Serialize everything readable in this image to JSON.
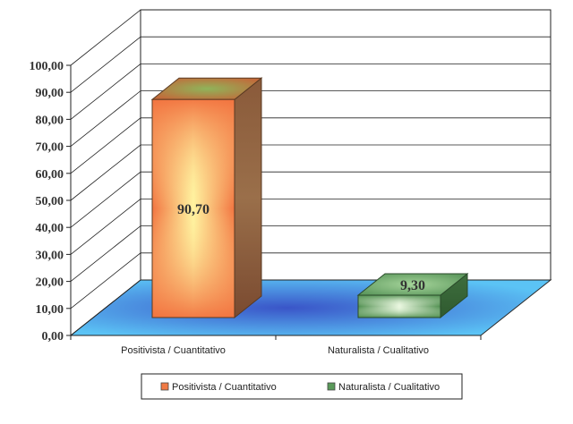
{
  "chart_data": {
    "type": "bar",
    "categories": [
      "Positivista / Cuantitativo",
      "Naturalista / Cualitativo"
    ],
    "values": [
      90.7,
      9.3
    ],
    "value_labels": [
      "90,70",
      "9,30"
    ],
    "y_ticks": [
      "0,00",
      "10,00",
      "20,00",
      "30,00",
      "40,00",
      "50,00",
      "60,00",
      "70,00",
      "80,00",
      "90,00",
      "100,00"
    ],
    "ylim": [
      0,
      100
    ],
    "legend": [
      "Positivista / Cuantitativo",
      "Naturalista / Cualitativo"
    ],
    "legend_position": "bottom",
    "grid": true,
    "style": "3d",
    "colors": {
      "series_1": "#f07a44",
      "series_1_light": "#fff3a0",
      "series_2": "#5a9a5a",
      "series_2_light": "#eaf7e0",
      "floor_edge": "#5bc3f5",
      "floor_center": "#3a55c8"
    }
  }
}
